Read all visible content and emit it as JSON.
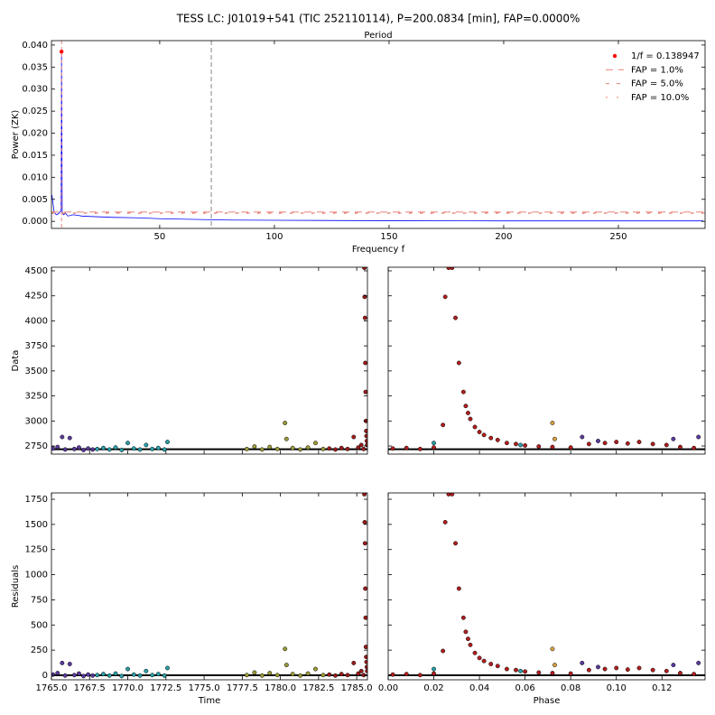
{
  "chart_data": [
    {
      "type": "line",
      "title": "TESS LC: J01019+541 (TIC 252110114), P=200.0834 [min], FAP=0.0000%",
      "top_axis_label": "Period",
      "xlabel": "Frequency f",
      "ylabel": "Power (ZK)",
      "color": "#0000ff",
      "x": [
        3,
        4,
        5,
        6,
        7,
        7.197,
        7.5,
        8,
        9,
        10,
        12,
        14,
        16,
        20,
        25,
        30,
        40,
        50,
        60,
        70,
        80,
        100,
        120,
        150,
        200,
        250,
        287
      ],
      "values": [
        0.006,
        0.002,
        0.0015,
        0.0018,
        0.0025,
        0.0385,
        0.002,
        0.0015,
        0.0018,
        0.0012,
        0.0015,
        0.0014,
        0.0012,
        0.0011,
        0.001,
        0.0009,
        0.0008,
        0.0006,
        0.0005,
        0.0004,
        0.0003,
        0.00025,
        0.0002,
        0.00015,
        0.0001,
        0.0001,
        0.0001
      ],
      "xlim": [
        2.8,
        287.8
      ],
      "ylim": [
        -0.0016,
        0.041
      ],
      "xticks": [
        50,
        100,
        150,
        200,
        250
      ],
      "yticks": [
        {
          "value": 0,
          "label": "0.000"
        },
        {
          "value": 0.005,
          "label": "0.005"
        },
        {
          "value": 0.01,
          "label": "0.010"
        },
        {
          "value": 0.015,
          "label": "0.015"
        },
        {
          "value": 0.02,
          "label": "0.020"
        },
        {
          "value": 0.025,
          "label": "0.025"
        },
        {
          "value": 0.03,
          "label": "0.030"
        },
        {
          "value": 0.035,
          "label": "0.035"
        },
        {
          "value": 0.04,
          "label": "0.040"
        }
      ],
      "peak": {
        "x": 7.197,
        "y": 0.0385,
        "label": "1/f = 0.138947",
        "color": "#ff0000"
      },
      "fap": [
        {
          "label": "FAP = 1.0%",
          "value": 0.0021,
          "color": "#e8827a"
        },
        {
          "label": "FAP = 5.0%",
          "value": 0.0019,
          "color": "#e8827a"
        },
        {
          "label": "FAP = 10.0%",
          "value": 0.0018,
          "color": "#e8827a"
        }
      ],
      "vlines": [
        {
          "x": 72.5,
          "color": "#999999"
        }
      ],
      "legend": "upper right"
    },
    {
      "type": "scatter",
      "ylabel": "Data",
      "xlim": [
        1765.0,
        1785.7
      ],
      "ylim": [
        2669,
        4536
      ],
      "xticks": [
        1765,
        1767.5,
        1770,
        1772.5,
        1775,
        1777.5,
        1780,
        1782.5,
        1785
      ],
      "show_xtick_labels": false,
      "yticks": [
        2750,
        3000,
        3250,
        3500,
        3750,
        4000,
        4250,
        4500
      ],
      "series": [
        {
          "color": "#000000",
          "marker": "line",
          "x": [
            1765.0,
            1785.7
          ],
          "values": [
            2718,
            2718
          ]
        },
        {
          "color": "#5b3a9e",
          "x": [
            1765.1,
            1765.4,
            1765.7,
            1765.9,
            1766.2,
            1766.5,
            1766.8,
            1767.1,
            1767.4,
            1767.7
          ],
          "values": [
            2725,
            2740,
            2840,
            2715,
            2830,
            2720,
            2735,
            2710,
            2725,
            2715
          ]
        },
        {
          "color": "#2a9fa8",
          "x": [
            1768.0,
            1768.4,
            1768.8,
            1769.2,
            1769.6,
            1770.0,
            1770.4,
            1770.8,
            1771.2,
            1771.6,
            1772.0,
            1772.4,
            1772.6
          ],
          "values": [
            2720,
            2730,
            2715,
            2735,
            2710,
            2780,
            2725,
            2715,
            2760,
            2720,
            2730,
            2715,
            2790
          ]
        },
        {
          "color": "#9a9a3a",
          "x": [
            1777.8,
            1778.3,
            1778.8,
            1779.3,
            1779.8,
            1780.3,
            1780.4,
            1780.8,
            1781.3,
            1781.8,
            1782.3,
            1782.8
          ],
          "values": [
            2720,
            2745,
            2715,
            2740,
            2720,
            2980,
            2820,
            2730,
            2715,
            2735,
            2780,
            2720
          ]
        },
        {
          "color": "#9b1c1c",
          "x": [
            1783.2,
            1783.6,
            1784.0,
            1784.4,
            1784.8,
            1785.1,
            1785.3,
            1785.45,
            1785.5,
            1785.52,
            1785.54,
            1785.56,
            1785.58,
            1785.6,
            1785.62,
            1785.64,
            1785.66,
            1785.68
          ],
          "values": [
            2725,
            2715,
            2730,
            2720,
            2840,
            2735,
            2760,
            2720,
            4530,
            4240,
            4030,
            3580,
            3290,
            3000,
            2900,
            2850,
            2800,
            2760
          ]
        }
      ]
    },
    {
      "type": "scatter",
      "xlim": [
        0,
        0.1389
      ],
      "ylim": [
        2669,
        4536
      ],
      "xticks": [
        0,
        0.02,
        0.04,
        0.06,
        0.08,
        0.1,
        0.12
      ],
      "show_xtick_labels": false,
      "yticks": [
        2750,
        3000,
        3250,
        3500,
        3750,
        4000,
        4250,
        4500
      ],
      "show_ytick_labels": false,
      "series": [
        {
          "color": "#000000",
          "marker": "line",
          "x": [
            0,
            0.1389
          ],
          "values": [
            2718,
            2718
          ]
        },
        {
          "color": "#b01e1e",
          "x": [
            0.002,
            0.008,
            0.014,
            0.02,
            0.024,
            0.0265,
            0.028,
            0.025,
            0.0295,
            0.031,
            0.033,
            0.034,
            0.035,
            0.036,
            0.038,
            0.04,
            0.042,
            0.045,
            0.048,
            0.052,
            0.056,
            0.06,
            0.066,
            0.072,
            0.08,
            0.088,
            0.095,
            0.1,
            0.105,
            0.11,
            0.116,
            0.122,
            0.128,
            0.134
          ],
          "values": [
            2725,
            2730,
            2720,
            2735,
            2960,
            4530,
            4530,
            4240,
            4030,
            3580,
            3290,
            3150,
            3080,
            3020,
            2940,
            2890,
            2860,
            2830,
            2810,
            2780,
            2770,
            2755,
            2745,
            2740,
            2735,
            2770,
            2780,
            2790,
            2775,
            2790,
            2770,
            2760,
            2740,
            2730
          ]
        },
        {
          "color": "#5b3a9e",
          "x": [
            0.085,
            0.092,
            0.125,
            0.136
          ],
          "values": [
            2840,
            2800,
            2820,
            2840
          ]
        },
        {
          "color": "#2a9fa8",
          "x": [
            0.02,
            0.058
          ],
          "values": [
            2780,
            2760
          ]
        },
        {
          "color": "#d8a040",
          "x": [
            0.072,
            0.073
          ],
          "values": [
            2980,
            2820
          ]
        }
      ]
    },
    {
      "type": "scatter",
      "ylabel": "Residuals",
      "xlabel": "Time",
      "xlim": [
        1765.0,
        1785.7
      ],
      "ylim": [
        -45,
        1813
      ],
      "xticks": [
        {
          "value": 1765,
          "label": "1765.0"
        },
        {
          "value": 1767.5,
          "label": "1767.5"
        },
        {
          "value": 1770,
          "label": "1770.0"
        },
        {
          "value": 1772.5,
          "label": "1772.5"
        },
        {
          "value": 1775,
          "label": "1775.0"
        },
        {
          "value": 1777.5,
          "label": "1777.5"
        },
        {
          "value": 1780,
          "label": "1780.0"
        },
        {
          "value": 1782.5,
          "label": "1782.5"
        },
        {
          "value": 1785,
          "label": "1785.0"
        }
      ],
      "yticks": [
        0,
        250,
        500,
        750,
        1000,
        1250,
        1500,
        1750
      ],
      "series": [
        {
          "color": "#000000",
          "marker": "line",
          "x": [
            1765.0,
            1785.7
          ],
          "values": [
            0,
            0
          ]
        },
        {
          "color": "#5b3a9e",
          "x": [
            1765.1,
            1765.4,
            1765.7,
            1765.9,
            1766.2,
            1766.5,
            1766.8,
            1767.1,
            1767.4,
            1767.7
          ],
          "values": [
            7,
            22,
            122,
            -3,
            112,
            2,
            17,
            -8,
            7,
            -3
          ]
        },
        {
          "color": "#2a9fa8",
          "x": [
            1768.0,
            1768.4,
            1768.8,
            1769.2,
            1769.6,
            1770.0,
            1770.4,
            1770.8,
            1771.2,
            1771.6,
            1772.0,
            1772.4,
            1772.6
          ],
          "values": [
            2,
            12,
            -3,
            17,
            -8,
            62,
            7,
            -3,
            42,
            2,
            12,
            -3,
            72
          ]
        },
        {
          "color": "#9a9a3a",
          "x": [
            1777.8,
            1778.3,
            1778.8,
            1779.3,
            1779.8,
            1780.3,
            1780.4,
            1780.8,
            1781.3,
            1781.8,
            1782.3,
            1782.8
          ],
          "values": [
            2,
            27,
            -3,
            22,
            2,
            262,
            102,
            12,
            -3,
            17,
            62,
            2
          ]
        },
        {
          "color": "#9b1c1c",
          "x": [
            1783.2,
            1783.6,
            1784.0,
            1784.4,
            1784.8,
            1785.1,
            1785.3,
            1785.45,
            1785.5,
            1785.52,
            1785.54,
            1785.56,
            1785.58,
            1785.6,
            1785.62,
            1785.64,
            1785.66,
            1785.68
          ],
          "values": [
            7,
            -3,
            12,
            2,
            122,
            17,
            42,
            2,
            1800,
            1522,
            1312,
            862,
            572,
            282,
            182,
            132,
            82,
            42
          ]
        }
      ]
    },
    {
      "type": "scatter",
      "xlabel": "Phase",
      "xlim": [
        0,
        0.1389
      ],
      "ylim": [
        -45,
        1813
      ],
      "xticks": [
        {
          "value": 0,
          "label": "0.00"
        },
        {
          "value": 0.02,
          "label": "0.02"
        },
        {
          "value": 0.04,
          "label": "0.04"
        },
        {
          "value": 0.06,
          "label": "0.06"
        },
        {
          "value": 0.08,
          "label": "0.08"
        },
        {
          "value": 0.1,
          "label": "0.10"
        },
        {
          "value": 0.12,
          "label": "0.12"
        }
      ],
      "yticks": [
        0,
        250,
        500,
        750,
        1000,
        1250,
        1500,
        1750
      ],
      "show_ytick_labels": false,
      "series": [
        {
          "color": "#000000",
          "marker": "line",
          "x": [
            0,
            0.1389
          ],
          "values": [
            0,
            0
          ]
        },
        {
          "color": "#b01e1e",
          "x": [
            0.002,
            0.008,
            0.014,
            0.02,
            0.024,
            0.0265,
            0.028,
            0.025,
            0.0295,
            0.031,
            0.033,
            0.034,
            0.035,
            0.036,
            0.038,
            0.04,
            0.042,
            0.045,
            0.048,
            0.052,
            0.056,
            0.06,
            0.066,
            0.072,
            0.08,
            0.088,
            0.095,
            0.1,
            0.105,
            0.11,
            0.116,
            0.122,
            0.128,
            0.134
          ],
          "values": [
            7,
            12,
            2,
            17,
            242,
            1800,
            1800,
            1522,
            1312,
            862,
            572,
            432,
            362,
            302,
            222,
            172,
            142,
            112,
            92,
            62,
            52,
            37,
            27,
            22,
            17,
            52,
            62,
            72,
            57,
            72,
            52,
            42,
            22,
            12
          ]
        },
        {
          "color": "#5b3a9e",
          "x": [
            0.085,
            0.092,
            0.125,
            0.136
          ],
          "values": [
            122,
            82,
            102,
            122
          ]
        },
        {
          "color": "#2a9fa8",
          "x": [
            0.02,
            0.058
          ],
          "values": [
            62,
            42
          ]
        },
        {
          "color": "#d8a040",
          "x": [
            0.072,
            0.073
          ],
          "values": [
            262,
            102
          ]
        }
      ]
    }
  ]
}
